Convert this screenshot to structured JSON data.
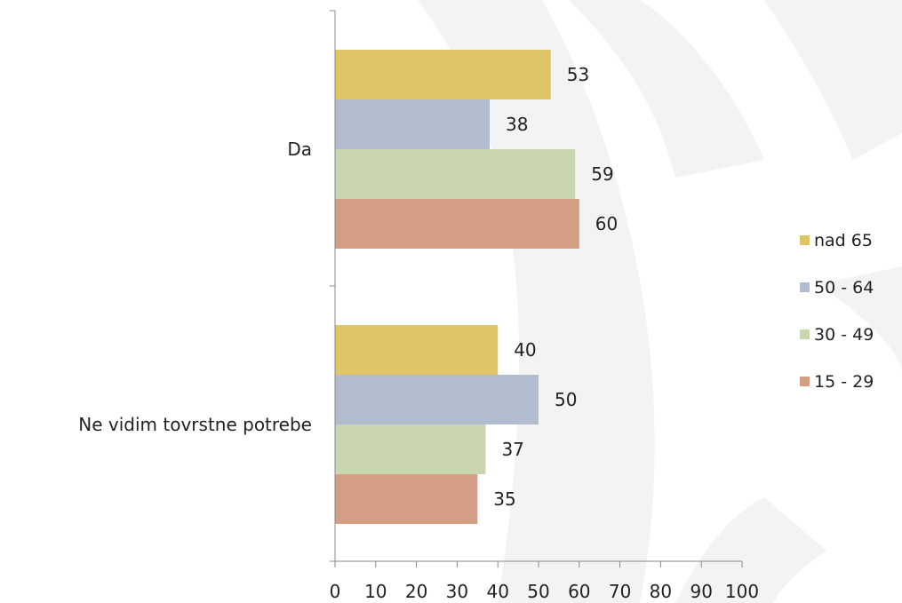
{
  "chart_data": {
    "type": "bar",
    "orientation": "horizontal",
    "categories": [
      "Da",
      "Ne vidim tovrstne potrebe"
    ],
    "series": [
      {
        "name": "nad 65",
        "color": "#E0C566",
        "values": [
          53,
          40
        ]
      },
      {
        "name": "50 - 64",
        "color": "#B1BCCF",
        "values": [
          38,
          50
        ]
      },
      {
        "name": "30 - 49",
        "color": "#CAD6B0",
        "values": [
          59,
          37
        ]
      },
      {
        "name": "15 - 29",
        "color": "#D49E84",
        "values": [
          60,
          35
        ]
      }
    ],
    "xlim": [
      0,
      100
    ],
    "xticks": [
      "0",
      "10",
      "20",
      "30",
      "40",
      "50",
      "60",
      "70",
      "80",
      "90",
      "100"
    ],
    "legend_position": "right",
    "grid": false
  }
}
